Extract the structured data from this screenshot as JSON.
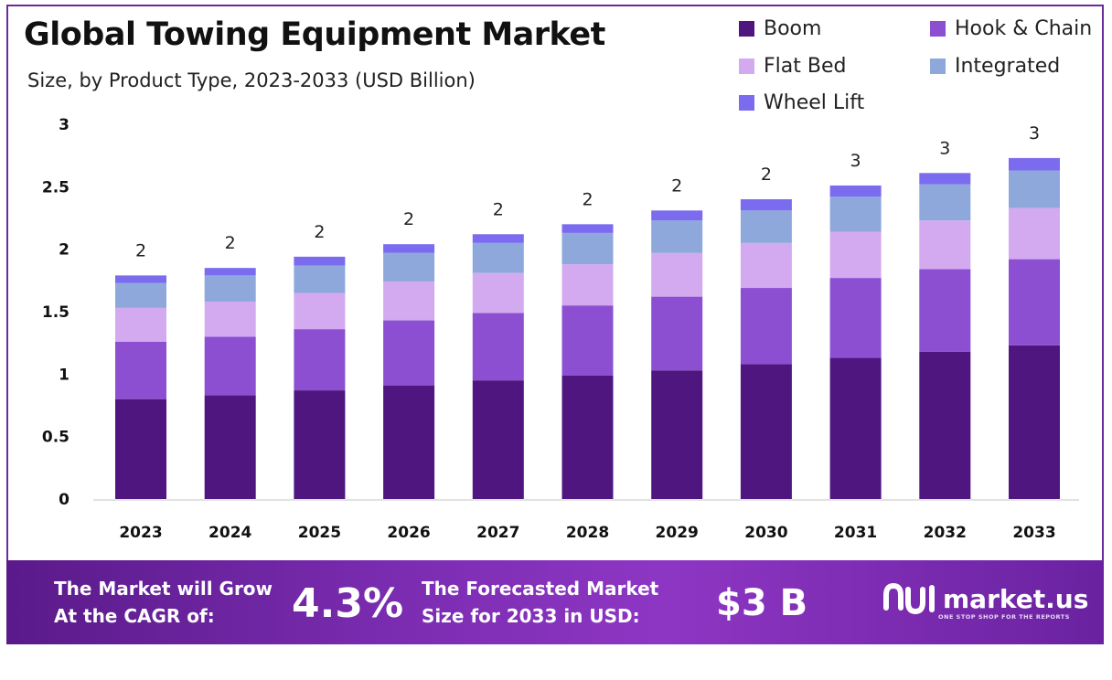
{
  "title": "Global Towing Equipment Market",
  "subtitle": "Size, by Product Type, 2023-2033 (USD Billion)",
  "legend": [
    {
      "name": "Boom",
      "color": "#4f1680"
    },
    {
      "name": "Hook & Chain",
      "color": "#8c4fd2"
    },
    {
      "name": "Flat Bed",
      "color": "#d3aaf0"
    },
    {
      "name": "Integrated",
      "color": "#8ea8dc"
    },
    {
      "name": "Wheel Lift",
      "color": "#7b6bef"
    }
  ],
  "chart_data": {
    "type": "bar",
    "stacked": true,
    "title": "Global Towing Equipment Market",
    "subtitle": "Size, by Product Type, 2023-2033 (USD Billion)",
    "xlabel": "",
    "ylabel": "",
    "ylim": [
      0,
      3
    ],
    "yticks": [
      "0",
      "0.5",
      "1",
      "1.5",
      "2",
      "2.5",
      "3"
    ],
    "categories": [
      "2023",
      "2024",
      "2025",
      "2026",
      "2027",
      "2028",
      "2029",
      "2030",
      "2031",
      "2032",
      "2033"
    ],
    "series": [
      {
        "name": "Boom",
        "color": "#4f1680",
        "values": [
          0.8,
          0.83,
          0.87,
          0.91,
          0.95,
          0.99,
          1.03,
          1.08,
          1.13,
          1.18,
          1.23
        ]
      },
      {
        "name": "Hook & Chain",
        "color": "#8c4fd2",
        "values": [
          0.46,
          0.47,
          0.49,
          0.52,
          0.54,
          0.56,
          0.59,
          0.61,
          0.64,
          0.66,
          0.69
        ]
      },
      {
        "name": "Flat Bed",
        "color": "#d3aaf0",
        "values": [
          0.27,
          0.28,
          0.29,
          0.31,
          0.32,
          0.33,
          0.35,
          0.36,
          0.37,
          0.39,
          0.41
        ]
      },
      {
        "name": "Integrated",
        "color": "#8ea8dc",
        "values": [
          0.2,
          0.21,
          0.22,
          0.23,
          0.24,
          0.25,
          0.26,
          0.26,
          0.28,
          0.29,
          0.3
        ]
      },
      {
        "name": "Wheel Lift",
        "color": "#7b6bef",
        "values": [
          0.06,
          0.06,
          0.07,
          0.07,
          0.07,
          0.07,
          0.08,
          0.09,
          0.09,
          0.09,
          0.1
        ]
      }
    ],
    "total_labels": [
      "2",
      "2",
      "2",
      "2",
      "2",
      "2",
      "2",
      "2",
      "3",
      "3",
      "3"
    ]
  },
  "footer": {
    "cagr_label_line1": "The Market will Grow",
    "cagr_label_line2": "At the CAGR of:",
    "cagr_value": "4.3%",
    "forecast_label_line1": "The Forecasted Market",
    "forecast_label_line2": "Size for 2033 in USD:",
    "forecast_value": "$3 B",
    "brand": "market.us",
    "tagline": "ONE STOP SHOP FOR THE REPORTS"
  }
}
